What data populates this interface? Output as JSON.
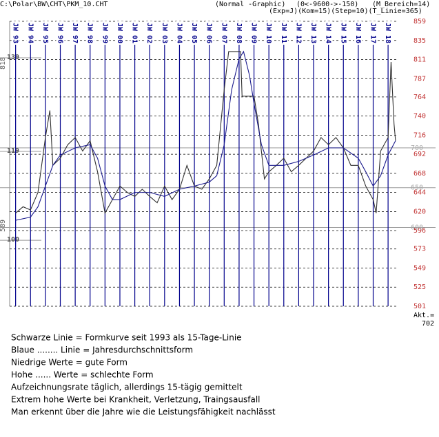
{
  "chart_data": {
    "type": "line",
    "title": "C:\\Polar\\BW\\CHT\\PKM_10.CHT",
    "header": [
      "(Normal -Graphic)",
      "(0<-9600->-150)",
      "(M_Bereich=14)",
      "(Exp=J)(Kom=15)(Step=10)(T_Linie=365)"
    ],
    "xlim": [
      1992.6,
      2018.55
    ],
    "xticks": [
      {
        "value": 1993,
        "label": "JW 93"
      },
      {
        "value": 1994,
        "label": "JW 94"
      },
      {
        "value": 1995,
        "label": "JW 95"
      },
      {
        "value": 1996,
        "label": "JW 96"
      },
      {
        "value": 1997,
        "label": "JW 97"
      },
      {
        "value": 1998,
        "label": "JW 98"
      },
      {
        "value": 1999,
        "label": "JW 99"
      },
      {
        "value": 2000,
        "label": "JW 00"
      },
      {
        "value": 2001,
        "label": "JW 01"
      },
      {
        "value": 2002,
        "label": "JW 02"
      },
      {
        "value": 2003,
        "label": "JW 03"
      },
      {
        "value": 2004,
        "label": "JW 04"
      },
      {
        "value": 2005,
        "label": "JW 05"
      },
      {
        "value": 2006,
        "label": "JW 06"
      },
      {
        "value": 2007,
        "label": "JW 07"
      },
      {
        "value": 2008,
        "label": "JW 08"
      },
      {
        "value": 2009,
        "label": "JW 09"
      },
      {
        "value": 2010,
        "label": "JW 10"
      },
      {
        "value": 2011,
        "label": "JW 11"
      },
      {
        "value": 2012,
        "label": "JW 12"
      },
      {
        "value": 2013,
        "label": "JW 13"
      },
      {
        "value": 2014,
        "label": "JW 14"
      },
      {
        "value": 2015,
        "label": "JW 15"
      },
      {
        "value": 2016,
        "label": "JW 16"
      },
      {
        "value": 2017,
        "label": "JW 17"
      },
      {
        "value": 2018,
        "label": "JW 18"
      }
    ],
    "ylim": [
      501,
      859
    ],
    "yticks": [
      859,
      835,
      811,
      787,
      764,
      740,
      716,
      692,
      668,
      644,
      620,
      596,
      573,
      549,
      525,
      501
    ],
    "ref_lines": [
      700,
      650,
      600
    ],
    "y2lim": [
      85.9,
      146.8
    ],
    "y2ticks": [
      100,
      119,
      139
    ],
    "side_labels": [
      "818",
      "589"
    ],
    "current": {
      "label": "Akt.=",
      "value": 702
    },
    "grid": true,
    "series": [
      {
        "color": "#303030",
        "x": [
          1993,
          1993.5,
          1994,
          1994.5,
          1995,
          1995.3,
          1995.5,
          1996,
          1996.5,
          1997,
          1997.5,
          1998,
          1998.5,
          1999,
          1999.5,
          2000,
          2000.5,
          2001,
          2001.5,
          2002,
          2002.5,
          2003,
          2003.5,
          2004,
          2004.5,
          2005,
          2005.5,
          2006,
          2006.5,
          2007,
          2007.3,
          2007.8,
          2008.1,
          2008.2,
          2008.6,
          2009,
          2009.3,
          2009.7,
          2010,
          2010.5,
          2011,
          2011.5,
          2012,
          2012.5,
          2013,
          2013.5,
          2014,
          2014.5,
          2015,
          2015.5,
          2016,
          2016.5,
          2017,
          2017.2,
          2017.5,
          2018,
          2018.2,
          2018.4,
          2018.5
        ],
        "values": [
          618,
          626,
          622,
          644,
          713,
          747,
          678,
          687,
          704,
          713,
          696,
          709,
          670,
          618,
          635,
          652,
          644,
          639,
          648,
          639,
          631,
          652,
          635,
          648,
          678,
          652,
          648,
          661,
          678,
          773,
          821,
          821,
          821,
          765,
          765,
          765,
          730,
          661,
          670,
          678,
          687,
          670,
          678,
          687,
          696,
          713,
          704,
          713,
          700,
          678,
          678,
          652,
          635,
          618,
          696,
          713,
          808,
          730,
          709
        ]
      },
      {
        "color": "#1a1a8c",
        "x": [
          1993,
          1994,
          1994.5,
          1995,
          1995.5,
          1996,
          1997,
          1998,
          1998.5,
          1999,
          1999.5,
          2000,
          2001,
          2002,
          2003,
          2004,
          2005,
          2006,
          2006.5,
          2007,
          2007.5,
          2008,
          2008.3,
          2008.7,
          2009,
          2009.5,
          2010,
          2011,
          2012,
          2013,
          2014,
          2015,
          2016,
          2016.5,
          2017,
          2017.5,
          2018,
          2018.5
        ],
        "values": [
          609,
          613,
          626,
          652,
          678,
          691,
          700,
          704,
          687,
          652,
          635,
          635,
          644,
          644,
          639,
          648,
          652,
          657,
          665,
          704,
          773,
          812,
          821,
          791,
          756,
          704,
          678,
          678,
          683,
          691,
          700,
          700,
          687,
          670,
          652,
          665,
          691,
          709
        ]
      }
    ],
    "notes": [
      "Schwarze Linie = Formkurve seit 1993 als 15-Tage-Linie",
      "Blaue ........ Linie = Jahresdurchschnittsform",
      "Niedrige Werte = gute Form",
      "Hohe ...... Werte = schlechte Form",
      "Aufzeichnungsrate täglich, allerdings 15-tägig gemittelt",
      "Extrem hohe Werte bei Krankheit, Verletzung, Traingsausfall",
      "Man erkennt über die Jahre wie die Leistungsfähigkeit nachlässt"
    ]
  }
}
